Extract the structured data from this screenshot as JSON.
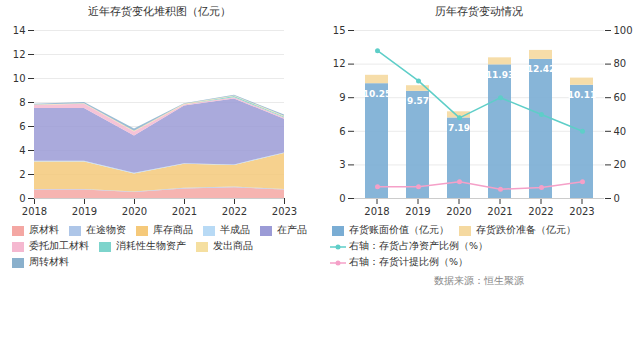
{
  "chart_data": [
    {
      "type": "area",
      "stacked": true,
      "title": "近年存货变化堆积图（亿元）",
      "x": [
        2018,
        2019,
        2020,
        2021,
        2022,
        2023
      ],
      "xlim": [
        2018,
        2023
      ],
      "xticks": [
        2018,
        2019,
        2020,
        2021,
        2022,
        2023
      ],
      "ylim": [
        0,
        14
      ],
      "yticks": [
        0,
        2,
        4,
        6,
        8,
        10,
        12,
        14
      ],
      "grid": true,
      "legend": "bottom",
      "series": [
        {
          "name": "原材料",
          "color": "#f4a7a3",
          "values": [
            0.7,
            0.7,
            0.5,
            0.8,
            0.9,
            0.7
          ]
        },
        {
          "name": "在途物资",
          "color": "#aec6e8",
          "values": [
            0.05,
            0.05,
            0.05,
            0.05,
            0.05,
            0.05
          ]
        },
        {
          "name": "库存商品",
          "color": "#f5c97a",
          "values": [
            2.3,
            2.3,
            1.5,
            2.0,
            1.8,
            3.0
          ]
        },
        {
          "name": "半成品",
          "color": "#b8daf5",
          "values": [
            0.05,
            0.05,
            0.05,
            0.05,
            0.05,
            0.05
          ]
        },
        {
          "name": "在产品",
          "color": "#9b9bd6",
          "values": [
            4.4,
            4.4,
            3.1,
            4.8,
            5.5,
            2.8
          ]
        },
        {
          "name": "委托加工材料",
          "color": "#f5b8d0",
          "values": [
            0.25,
            0.35,
            0.35,
            0.1,
            0.1,
            0.1
          ]
        },
        {
          "name": "消耗性生物资产",
          "color": "#7dd4cc",
          "values": [
            0.0,
            0.0,
            0.0,
            0.0,
            0.1,
            0.1
          ]
        },
        {
          "name": "发出商品",
          "color": "#f5dfa0",
          "values": [
            0.05,
            0.05,
            0.05,
            0.05,
            0.05,
            0.05
          ]
        },
        {
          "name": "周转材料",
          "color": "#8ab0cc",
          "values": [
            0.05,
            0.1,
            0.2,
            0.05,
            0.05,
            0.1
          ]
        }
      ]
    },
    {
      "type": "bar",
      "stacked": true,
      "title": "历年存货变动情况",
      "categories": [
        "2018",
        "2019",
        "2020",
        "2021",
        "2022",
        "2023"
      ],
      "ylim": [
        0,
        15
      ],
      "yticks": [
        0,
        3,
        6,
        9,
        12,
        15
      ],
      "y2lim": [
        0,
        100
      ],
      "y2ticks": [
        0,
        20,
        40,
        60,
        80,
        100
      ],
      "grid": true,
      "legend": "bottom",
      "series": [
        {
          "name": "存货账面价值（亿元）",
          "color": "#7aadd4",
          "values": [
            10.25,
            9.57,
            7.19,
            11.93,
            12.42,
            10.11
          ],
          "data_labels": true
        },
        {
          "name": "存货跌价准备（亿元）",
          "color": "#f5d9a0",
          "values": [
            0.75,
            0.5,
            0.55,
            0.63,
            0.8,
            0.64
          ]
        },
        {
          "name": "右轴：存货占净资产比例（%）",
          "type": "line",
          "axis": "y2",
          "marker": "circle",
          "color": "#5ecec8",
          "values": [
            88,
            70,
            48,
            60,
            50,
            40
          ]
        },
        {
          "name": "右轴：存货计提比例（%）",
          "type": "line",
          "axis": "y2",
          "marker": "circle",
          "color": "#f5a0c8",
          "values": [
            7.0,
            7.0,
            10.0,
            5.5,
            6.5,
            10.0
          ]
        }
      ],
      "annotations": [
        "数据来源：恒生聚源"
      ]
    }
  ]
}
